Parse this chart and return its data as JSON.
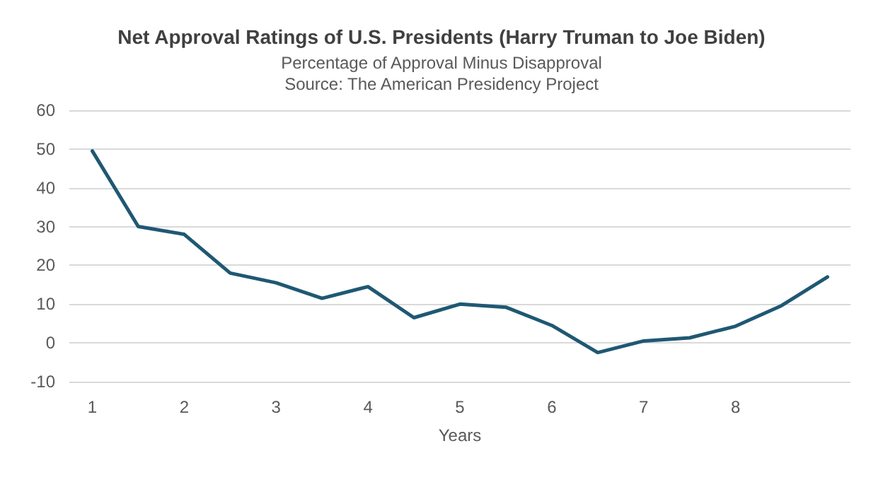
{
  "chart_data": {
    "type": "line",
    "title": "Net Approval Ratings of U.S. Presidents (Harry Truman to Joe Biden)",
    "subtitle": "Percentage of Approval Minus Disapproval\nSource: The American Presidency Project",
    "xlabel": "Years",
    "categories": [
      "1",
      null,
      "2",
      null,
      "3",
      null,
      "4",
      null,
      "5",
      null,
      "6",
      null,
      "7",
      null,
      "8",
      null,
      null
    ],
    "series": [
      {
        "color": "#1f5873",
        "values": [
          49.5,
          30,
          28,
          18,
          15.5,
          11.5,
          14.5,
          6.5,
          10,
          9.2,
          4.5,
          -2.5,
          0.5,
          1.3,
          4.3,
          9.6,
          17
        ]
      }
    ],
    "ylim": [
      -10,
      60
    ],
    "yticks": [
      -10,
      0,
      10,
      20,
      30,
      40,
      50,
      60
    ],
    "grid": "y",
    "marker": "none",
    "line_style": "solid"
  }
}
